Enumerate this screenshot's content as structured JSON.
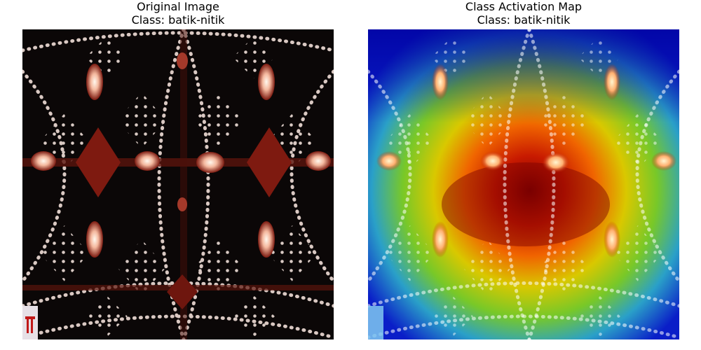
{
  "panels": [
    {
      "title": "Original Image",
      "subtitle": "Class: batik-nitik",
      "kind": "original"
    },
    {
      "title": "Class Activation Map",
      "subtitle": "Class: batik-nitik",
      "kind": "cam"
    }
  ],
  "colors": {
    "background": "#0a0606",
    "dot": "#e8d8d2",
    "motif_red": "#8b1d12",
    "motif_glow": "#ffe9d6"
  }
}
